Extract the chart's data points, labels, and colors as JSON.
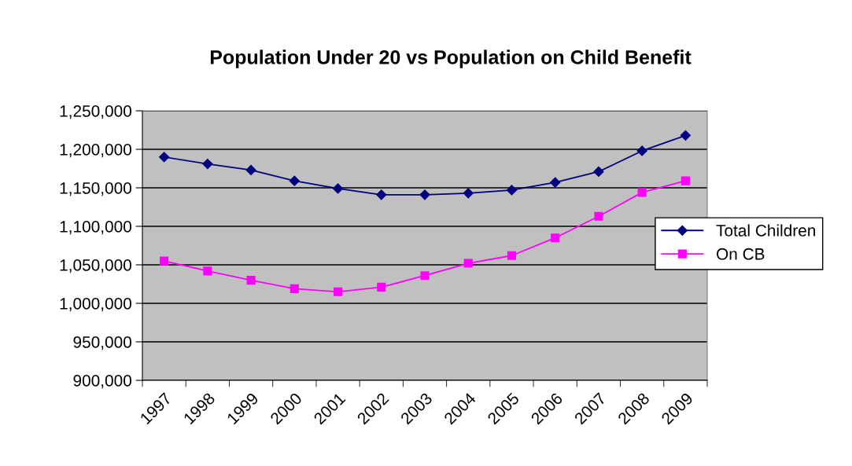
{
  "chart_data": {
    "type": "line",
    "title": "Population Under 20 vs Population on Child Benefit",
    "categories": [
      "1997",
      "1998",
      "1999",
      "2000",
      "2001",
      "2002",
      "2003",
      "2004",
      "2005",
      "2006",
      "2007",
      "2008",
      "2009"
    ],
    "series": [
      {
        "name": "Total Children",
        "color": "#000080",
        "marker": "diamond",
        "values": [
          1190000,
          1181000,
          1173000,
          1159000,
          1149000,
          1141000,
          1141000,
          1143000,
          1147000,
          1157000,
          1171000,
          1198000,
          1218000
        ]
      },
      {
        "name": "On CB",
        "color": "#ff00ff",
        "marker": "square",
        "values": [
          1055000,
          1042000,
          1030000,
          1019000,
          1015000,
          1021000,
          1036000,
          1052000,
          1062000,
          1085000,
          1113000,
          1144000,
          1159000
        ]
      }
    ],
    "ylim": [
      900000,
      1250000
    ],
    "yticks": [
      {
        "value": 900000,
        "label": "900,000"
      },
      {
        "value": 950000,
        "label": "950,000"
      },
      {
        "value": 1000000,
        "label": "1,000,000"
      },
      {
        "value": 1050000,
        "label": "1,050,000"
      },
      {
        "value": 1100000,
        "label": "1,100,000"
      },
      {
        "value": 1150000,
        "label": "1,150,000"
      },
      {
        "value": 1200000,
        "label": "1,200,000"
      },
      {
        "value": 1250000,
        "label": "1,250,000"
      }
    ],
    "grid": "y",
    "legend": "right",
    "line_style": "solid"
  }
}
